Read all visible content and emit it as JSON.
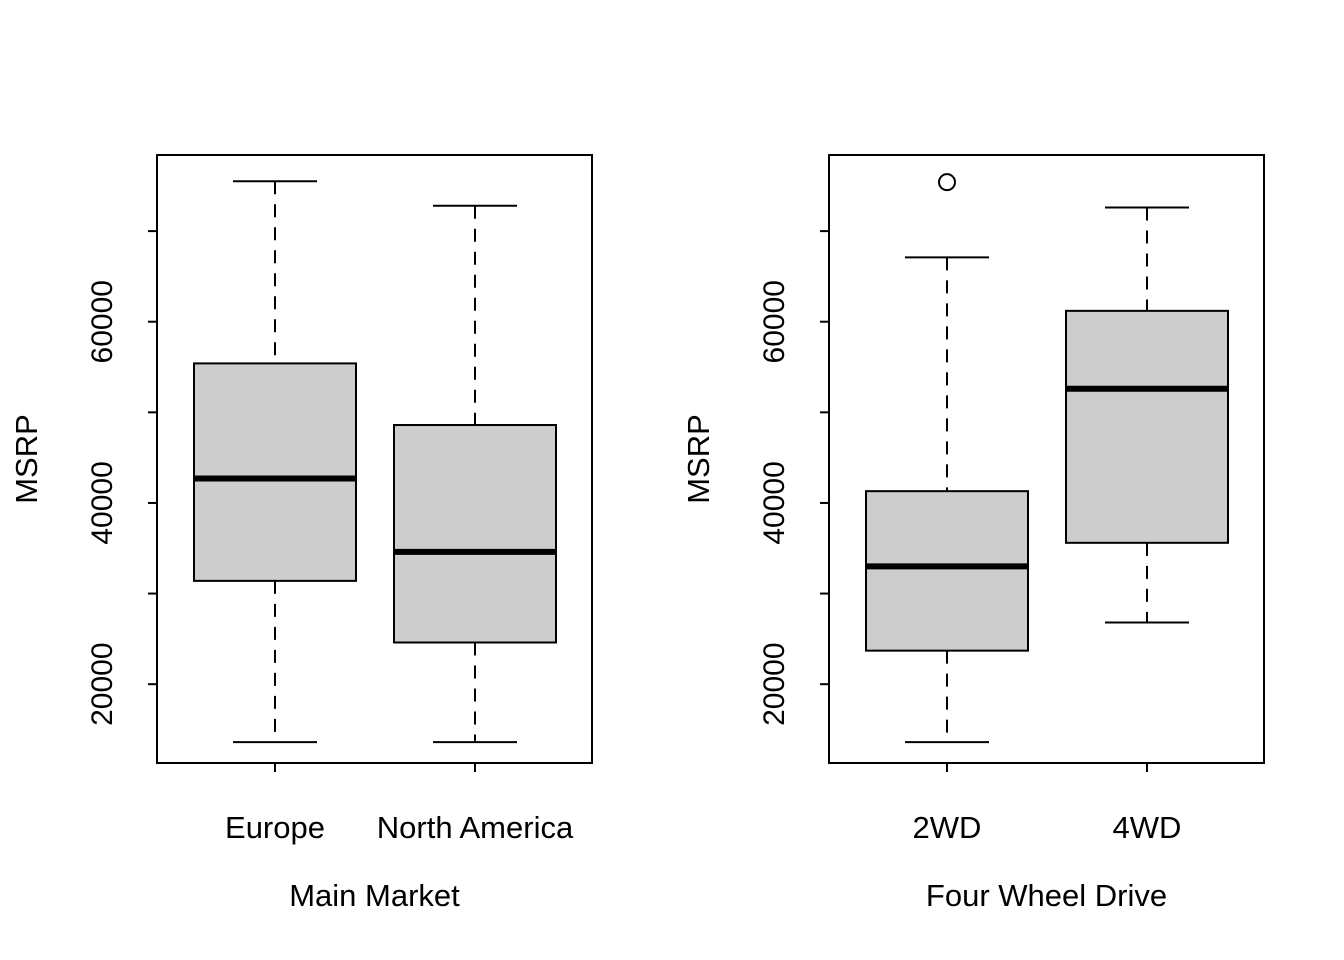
{
  "figure": {
    "background": "#ffffff",
    "box_fill": "#cdcdcd",
    "line_color": "#000000"
  },
  "chart_data": [
    {
      "type": "boxplot",
      "title": "",
      "xlabel": "Main Market",
      "ylabel": "MSRP",
      "categories": [
        "Europe",
        "North America"
      ],
      "y_ticks": [
        20000,
        30000,
        40000,
        50000,
        60000,
        70000
      ],
      "y_labeled_ticks": [
        20000,
        40000,
        60000
      ],
      "ylim": [
        11300,
        78400
      ],
      "grid": false,
      "legend": null,
      "series": [
        {
          "name": "Europe",
          "min": 13600,
          "q1": 31400,
          "median": 42700,
          "q3": 55400,
          "max": 75500,
          "outliers": []
        },
        {
          "name": "North America",
          "min": 13600,
          "q1": 24600,
          "median": 34600,
          "q3": 48600,
          "max": 72800,
          "outliers": []
        }
      ]
    },
    {
      "type": "boxplot",
      "title": "",
      "xlabel": "Four Wheel Drive",
      "ylabel": "MSRP",
      "categories": [
        "2WD",
        "4WD"
      ],
      "y_ticks": [
        20000,
        30000,
        40000,
        50000,
        60000,
        70000
      ],
      "y_labeled_ticks": [
        20000,
        40000,
        60000
      ],
      "ylim": [
        11300,
        78400
      ],
      "grid": false,
      "legend": null,
      "series": [
        {
          "name": "2WD",
          "min": 13600,
          "q1": 23700,
          "median": 33000,
          "q3": 41300,
          "max": 67100,
          "outliers": [
            75400
          ]
        },
        {
          "name": "4WD",
          "min": 26800,
          "q1": 35600,
          "median": 52600,
          "q3": 61200,
          "max": 72600,
          "outliers": []
        }
      ]
    }
  ]
}
